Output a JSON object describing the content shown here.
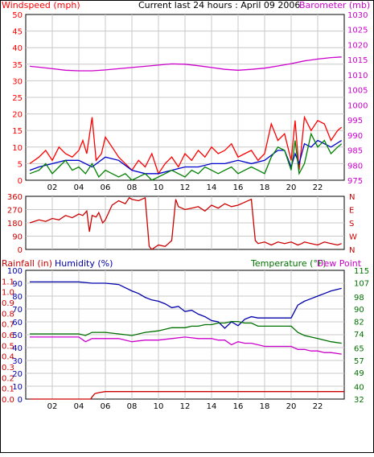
{
  "header": {
    "left_title": "Windspeed (mph)",
    "center_title": "Current last 24 hours : April 09 2006",
    "right_title": "Barometer (mb)"
  },
  "colors": {
    "wind_speed": "#ff0000",
    "wind_gust": "#dd0000",
    "wind_avg": "#0000cc",
    "wind_green": "#008000",
    "barometer": "#cc00cc",
    "direction": "#cc0000",
    "rain": "#cc0000",
    "humidity": "#0000aa",
    "temperature": "#007000",
    "dewpoint": "#cc00cc",
    "grid": "#c8c8c8",
    "axis": "#000000"
  },
  "chart_data": [
    {
      "type": "line",
      "name": "wind",
      "title": "Current last 24 hours : April 09 2006",
      "ylabel_left": "Windspeed (mph)",
      "ylabel_right": "Barometer (mb)",
      "x_ticks": [
        "02",
        "04",
        "06",
        "08",
        "10",
        "12",
        "14",
        "16",
        "18",
        "20",
        "22"
      ],
      "ylim_left": [
        0,
        50
      ],
      "yticks_left": [
        0,
        5,
        10,
        15,
        20,
        25,
        30,
        35,
        40,
        45,
        50
      ],
      "ylim_right": [
        975,
        1030
      ],
      "yticks_right": [
        975,
        980,
        985,
        990,
        995,
        1000,
        1005,
        1010,
        1015,
        1020,
        1025,
        1030
      ],
      "grid": true,
      "series": [
        {
          "axis": "left",
          "color_key": "wind_speed",
          "x": [
            0.3,
            1,
            1.5,
            2,
            2.5,
            3,
            3.5,
            4,
            4.3,
            4.6,
            5,
            5.3,
            5.7,
            6,
            6.5,
            7,
            7.5,
            8,
            8.5,
            9,
            9.5,
            10,
            10.5,
            11,
            11.5,
            12,
            12.5,
            13,
            13.5,
            14,
            14.5,
            15,
            15.5,
            16,
            16.5,
            17,
            17.5,
            18,
            18.5,
            19,
            19.5,
            20,
            20.3,
            20.6,
            21,
            21.5,
            22,
            22.5,
            23,
            23.5,
            23.8
          ],
          "y": [
            5,
            7,
            9,
            6,
            10,
            8,
            7,
            9,
            12,
            8,
            19,
            6,
            8,
            13,
            10,
            7,
            5,
            3,
            6,
            4,
            8,
            2,
            5,
            7,
            4,
            8,
            6,
            9,
            7,
            10,
            8,
            9,
            11,
            7,
            8,
            9,
            6,
            8,
            17,
            12,
            14,
            6,
            18,
            3,
            19,
            15,
            18,
            17,
            12,
            15,
            16
          ]
        },
        {
          "axis": "left",
          "color_key": "wind_avg",
          "x": [
            0.3,
            1,
            2,
            3,
            4,
            5,
            6,
            7,
            8,
            9,
            10,
            11,
            12,
            13,
            14,
            15,
            16,
            17,
            18,
            19,
            19.5,
            20,
            20.3,
            20.6,
            21,
            21.5,
            22,
            22.5,
            23,
            23.8
          ],
          "y": [
            3,
            4,
            5,
            6,
            6,
            4,
            7,
            6,
            3,
            2,
            2,
            3,
            4,
            4,
            5,
            5,
            6,
            5,
            6,
            9,
            9,
            4,
            8,
            5,
            11,
            10,
            12,
            11,
            10,
            12
          ]
        },
        {
          "axis": "left",
          "color_key": "wind_green",
          "x": [
            0.3,
            1,
            1.5,
            2,
            2.5,
            3,
            3.5,
            4,
            4.5,
            5,
            5.5,
            6,
            6.5,
            7,
            7.5,
            8,
            8.5,
            9,
            9.5,
            10,
            10.5,
            11,
            11.5,
            12,
            12.5,
            13,
            13.5,
            14,
            14.5,
            15,
            15.5,
            16,
            16.5,
            17,
            17.5,
            18,
            18.5,
            19,
            19.5,
            20,
            20.3,
            20.6,
            21,
            21.5,
            22,
            22.5,
            23,
            23.5,
            23.8
          ],
          "y": [
            2,
            3,
            5,
            2,
            4,
            6,
            3,
            4,
            2,
            5,
            1,
            3,
            2,
            1,
            2,
            0,
            1,
            2,
            0,
            1,
            2,
            3,
            2,
            1,
            3,
            2,
            4,
            3,
            2,
            3,
            4,
            2,
            3,
            4,
            3,
            2,
            7,
            10,
            9,
            3,
            12,
            2,
            5,
            14,
            10,
            12,
            8,
            10,
            11
          ]
        },
        {
          "axis": "right",
          "color_key": "barometer",
          "x": [
            0.3,
            1,
            2,
            3,
            4,
            5,
            6,
            7,
            8,
            9,
            10,
            11,
            12,
            13,
            14,
            15,
            16,
            17,
            18,
            19,
            20,
            21,
            22,
            23,
            23.8
          ],
          "y": [
            1012.8,
            1012.5,
            1012,
            1011.5,
            1011.3,
            1011.3,
            1011.6,
            1012,
            1012.4,
            1012.8,
            1013.2,
            1013.6,
            1013.5,
            1013,
            1012.4,
            1011.8,
            1011.5,
            1011.8,
            1012.2,
            1012.9,
            1013.7,
            1014.6,
            1015.2,
            1015.7,
            1015.9
          ]
        }
      ]
    },
    {
      "type": "line",
      "name": "wind_direction",
      "ylabel_left": "",
      "ylim_left": [
        0,
        360
      ],
      "yticks_left": [
        0,
        90,
        180,
        270,
        360
      ],
      "yticks_right_labels": [
        "N",
        "E",
        "S",
        "W",
        "N"
      ],
      "grid": true,
      "series": [
        {
          "axis": "left",
          "color_key": "direction",
          "x": [
            0.3,
            1,
            1.5,
            2,
            2.5,
            3,
            3.5,
            4,
            4.3,
            4.6,
            4.8,
            5,
            5.3,
            5.5,
            5.8,
            6,
            6.5,
            7,
            7.5,
            7.8,
            8,
            8.5,
            9,
            9.3,
            9.5,
            10,
            10.5,
            11,
            11.3,
            11.5,
            12,
            12.5,
            13,
            13.5,
            14,
            14.5,
            15,
            15.5,
            16,
            16.5,
            17,
            17.3,
            17.5,
            18,
            18.5,
            19,
            19.5,
            20,
            20.5,
            20.8,
            21,
            21.5,
            22,
            22.5,
            23,
            23.5,
            23.8
          ],
          "y": [
            180,
            200,
            190,
            210,
            200,
            230,
            215,
            240,
            230,
            260,
            120,
            230,
            220,
            250,
            180,
            200,
            300,
            330,
            310,
            350,
            340,
            330,
            350,
            20,
            0,
            30,
            20,
            60,
            340,
            290,
            270,
            280,
            290,
            260,
            300,
            280,
            310,
            290,
            300,
            320,
            340,
            60,
            40,
            50,
            30,
            50,
            40,
            50,
            30,
            40,
            50,
            40,
            30,
            50,
            40,
            30,
            40
          ]
        }
      ]
    },
    {
      "type": "line",
      "name": "rain_humidity_temperature",
      "ylabel_left": "Rainfall (in)",
      "ylabel_left2": "Humidity (%)",
      "ylabel_right": "Temperature (°F)",
      "ylabel_right2": "Dew Point",
      "ylim_rain": [
        0,
        1.2
      ],
      "yticks_rain": [
        0.0,
        0.1,
        0.2,
        0.3,
        0.4,
        0.5,
        0.6,
        0.7,
        0.8,
        0.9,
        1.0,
        1.1
      ],
      "ylim_humidity": [
        0,
        100
      ],
      "yticks_humidity": [
        0,
        10,
        20,
        30,
        40,
        50,
        60,
        70,
        80,
        90,
        100
      ],
      "ylim_temp": [
        32,
        115
      ],
      "yticks_temp": [
        32,
        40,
        49,
        57,
        65,
        74,
        82,
        90,
        98,
        107,
        115
      ],
      "grid": true,
      "series": [
        {
          "axis": "humidity",
          "color_key": "humidity",
          "x": [
            0.3,
            1,
            2,
            3,
            4,
            5,
            6,
            7,
            8,
            8.5,
            9,
            9.5,
            10,
            10.5,
            11,
            11.5,
            12,
            12.5,
            13,
            13.5,
            14,
            14.5,
            15,
            15.5,
            16,
            16.5,
            17,
            17.5,
            18,
            18.5,
            19,
            19.5,
            20,
            20.5,
            21,
            21.5,
            22,
            22.5,
            23,
            23.8
          ],
          "y": [
            91,
            91,
            91,
            91,
            91,
            90,
            90,
            89,
            84,
            82,
            79,
            77,
            76,
            74,
            71,
            72,
            68,
            69,
            66,
            64,
            61,
            60,
            55,
            60,
            57,
            62,
            64,
            63,
            63,
            63,
            63,
            63,
            63,
            73,
            76,
            78,
            80,
            82,
            84,
            86
          ]
        },
        {
          "axis": "temp",
          "color_key": "temperature",
          "x": [
            0.3,
            1,
            2,
            3,
            4,
            4.5,
            5,
            6,
            7,
            8,
            9,
            10,
            10.5,
            11,
            12,
            12.5,
            13,
            13.5,
            14,
            14.5,
            15,
            15.5,
            16,
            16.5,
            17,
            17.5,
            18,
            19,
            20,
            20.5,
            21,
            21.5,
            22,
            22.5,
            23,
            23.8
          ],
          "y": [
            74,
            74,
            74,
            74,
            74,
            73,
            75,
            75,
            74,
            73,
            75,
            76,
            77,
            78,
            78,
            79,
            79,
            80,
            80,
            81,
            81,
            82,
            82,
            81,
            81,
            79,
            79,
            79,
            79,
            75,
            73,
            72,
            71,
            70,
            69,
            68
          ]
        },
        {
          "axis": "temp",
          "color_key": "dewpoint",
          "x": [
            0.3,
            1,
            2,
            3,
            4,
            4.5,
            5,
            6,
            7,
            8,
            9,
            10,
            11,
            12,
            13,
            14,
            14.5,
            15,
            15.5,
            16,
            16.5,
            17,
            17.5,
            18,
            19,
            20,
            20.5,
            21,
            21.5,
            22,
            22.5,
            23,
            23.8
          ],
          "y": [
            72,
            72,
            72,
            72,
            72,
            69,
            71,
            71,
            71,
            69,
            70,
            70,
            71,
            72,
            71,
            71,
            70,
            70,
            67,
            69,
            68,
            68,
            67,
            66,
            66,
            66,
            64,
            64,
            63,
            63,
            62,
            62,
            61
          ]
        },
        {
          "axis": "rain",
          "color_key": "rain",
          "x": [
            0.3,
            4.9,
            5,
            5.2,
            5.5,
            6,
            24
          ],
          "y": [
            0.0,
            0.0,
            0.02,
            0.05,
            0.06,
            0.07,
            0.07
          ]
        }
      ]
    }
  ]
}
